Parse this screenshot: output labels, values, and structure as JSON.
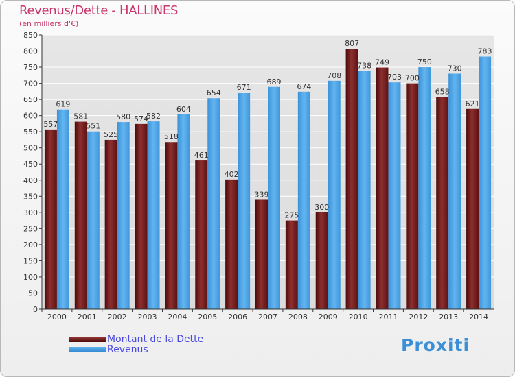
{
  "title": "Revenus/Dette - HALLINES",
  "subtitle": "(en milliers d'€)",
  "legend": {
    "debt": "Montant de la Dette",
    "revenue": "Revenus"
  },
  "logo": {
    "text": "Proxiti"
  },
  "colors": {
    "debt": "#7a1f1f",
    "revenue": "#4aa3e6",
    "title": "#c8366b",
    "legend_text": "#4a4ae0",
    "grid": "#ffffff"
  },
  "chart_data": {
    "type": "bar",
    "title": "Revenus/Dette - HALLINES",
    "ylabel": "(en milliers d'€)",
    "xlabel": "",
    "categories": [
      "2000",
      "2001",
      "2002",
      "2003",
      "2004",
      "2005",
      "2006",
      "2007",
      "2008",
      "2009",
      "2010",
      "2011",
      "2012",
      "2013",
      "2014"
    ],
    "series": [
      {
        "name": "Montant de la Dette",
        "values": [
          557,
          581,
          525,
          574,
          518,
          461,
          402,
          339,
          275,
          300,
          807,
          749,
          700,
          658,
          621
        ]
      },
      {
        "name": "Revenus",
        "values": [
          619,
          551,
          580,
          582,
          604,
          654,
          671,
          689,
          674,
          708,
          738,
          703,
          750,
          730,
          783
        ]
      }
    ],
    "ylim": [
      0,
      850
    ],
    "yticks": [
      0,
      50,
      100,
      150,
      200,
      250,
      300,
      350,
      400,
      450,
      500,
      550,
      600,
      650,
      700,
      750,
      800,
      850
    ],
    "grid": true,
    "legend_position": "bottom-left"
  }
}
